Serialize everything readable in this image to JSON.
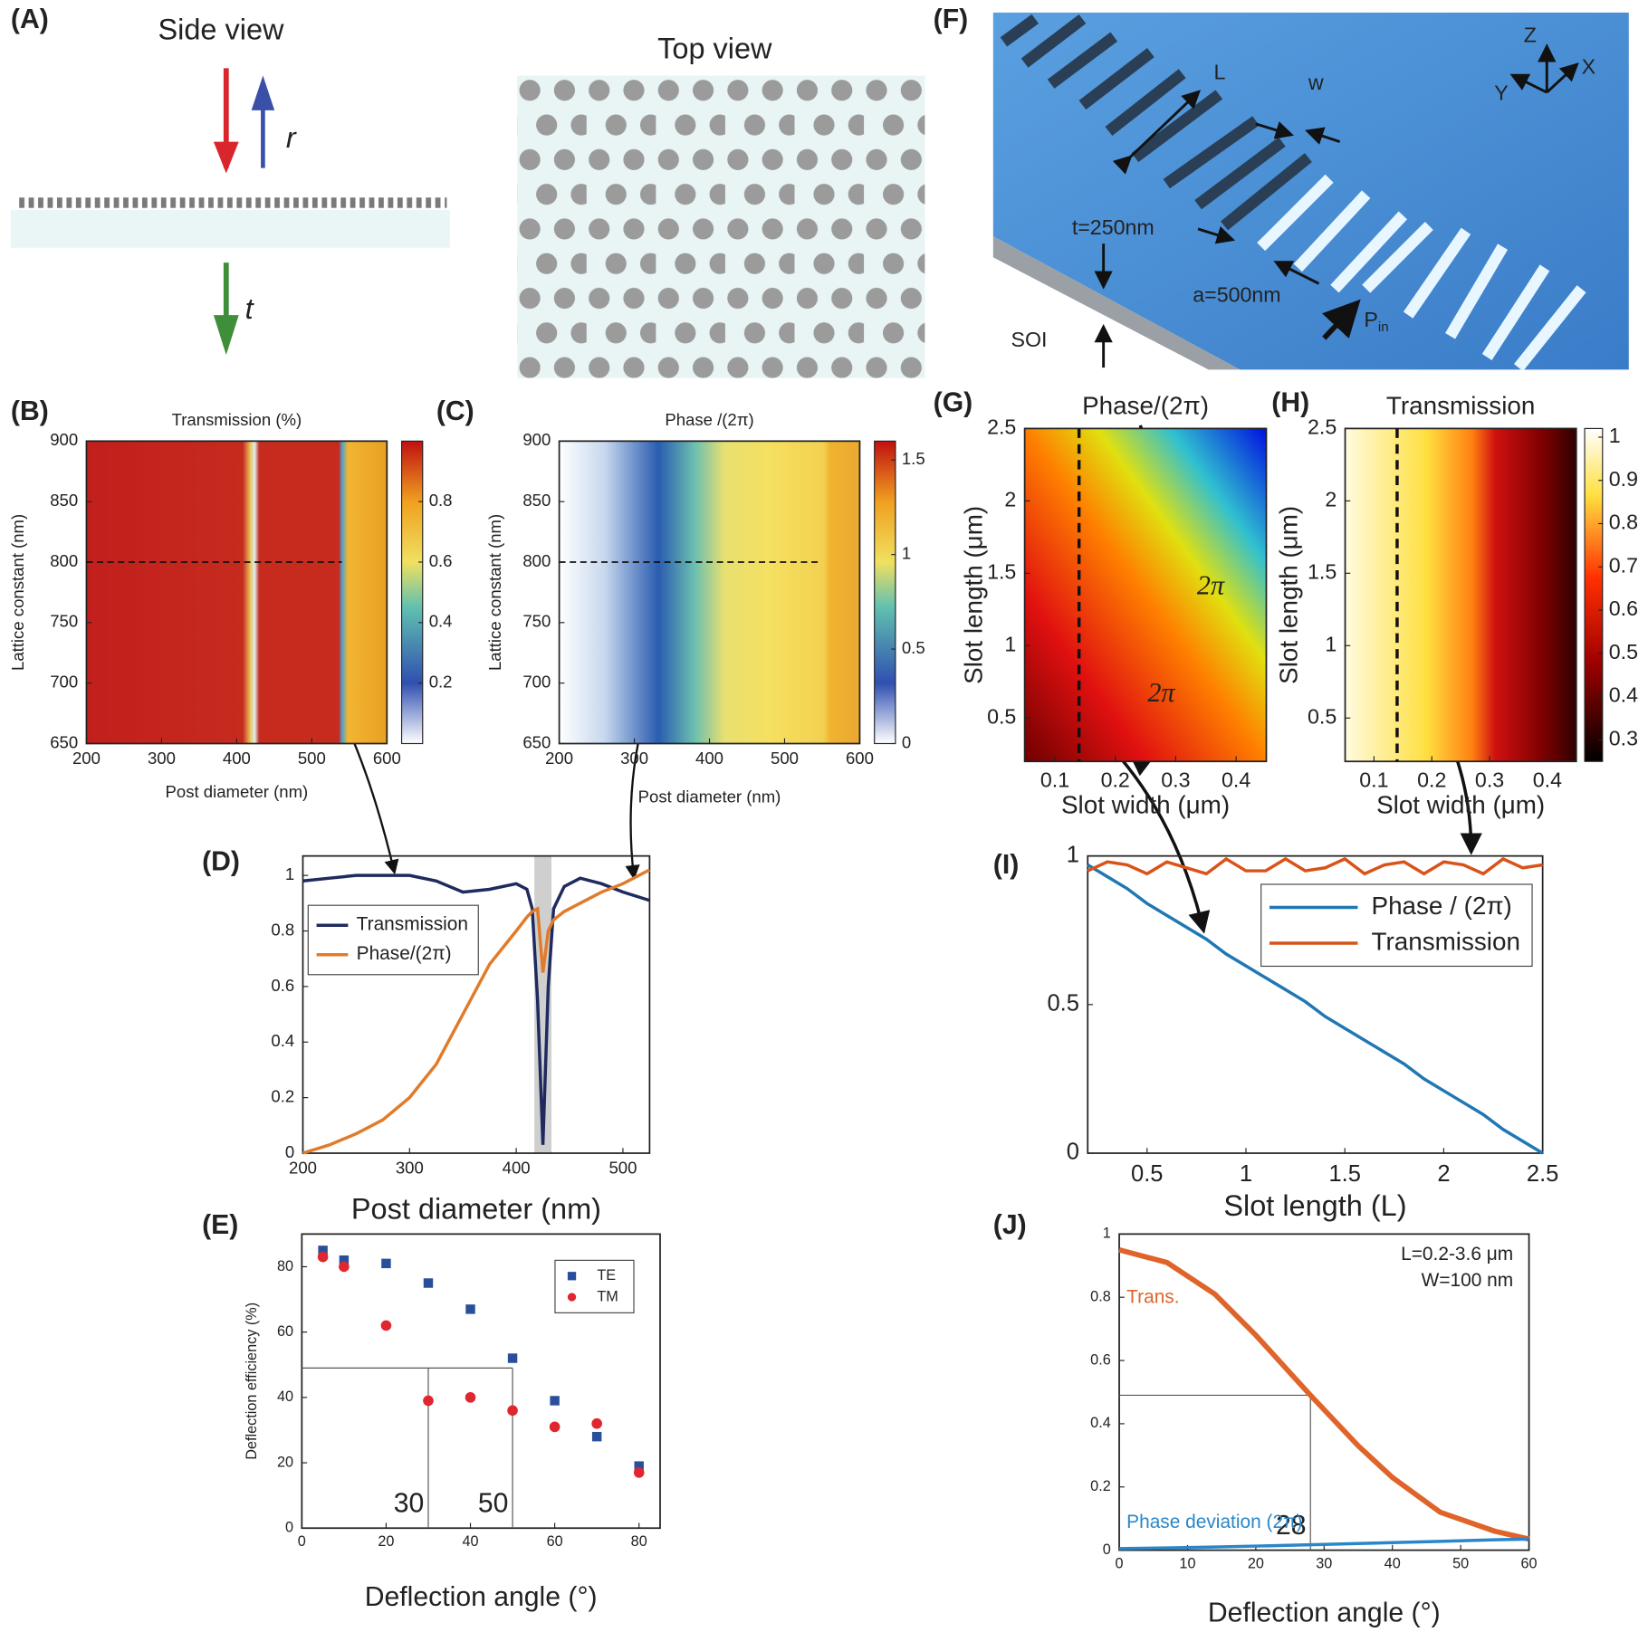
{
  "panel_a": {
    "label": "(A)",
    "side_title": "Side view",
    "reflected": "r",
    "transmitted": "t",
    "top_title": "Top view"
  },
  "panel_f": {
    "label": "(F)",
    "slot_length": "L",
    "slot_width": "w",
    "axis_z": "Z",
    "axis_x": "X",
    "axis_y": "Y",
    "thickness": "t=250nm",
    "period": "a=500nm",
    "substrate": "SOI",
    "input": "P",
    "input_sub": "in"
  },
  "chart_data": [
    {
      "type": "heatmap",
      "label": "(B)",
      "title": "Transmission (%)",
      "xlabel": "Post diameter (nm)",
      "ylabel": "Lattice constant (nm)",
      "xlim": [
        200,
        600
      ],
      "ylim": [
        650,
        900
      ],
      "xticks": [
        200,
        300,
        400,
        500,
        600
      ],
      "yticks": [
        650,
        700,
        750,
        800,
        850,
        900
      ],
      "reference_y": 800,
      "reference_end": 540,
      "colorbar": {
        "lim": [
          0,
          1
        ],
        "ticks": [
          0.2,
          0.4,
          0.6,
          0.8
        ]
      }
    },
    {
      "type": "heatmap",
      "label": "(C)",
      "title": "Phase /(2π)",
      "xlabel": "Post diameter (nm)",
      "ylabel": "Lattice constant (nm)",
      "xlim": [
        200,
        600
      ],
      "ylim": [
        650,
        900
      ],
      "xticks": [
        200,
        300,
        400,
        500,
        600
      ],
      "yticks": [
        650,
        700,
        750,
        800,
        850,
        900
      ],
      "reference_y": 800,
      "reference_end": 545,
      "colorbar": {
        "lim": [
          0,
          1.6
        ],
        "ticks": [
          0,
          0.5,
          1,
          1.5
        ]
      }
    },
    {
      "type": "line",
      "label": "(D)",
      "xlabel": "Post diameter (nm)",
      "xlim": [
        200,
        525
      ],
      "ylim": [
        0,
        1.07
      ],
      "xticks": [
        200,
        300,
        400,
        500
      ],
      "yticks": [
        0,
        0.2,
        0.4,
        0.6,
        0.8,
        1
      ],
      "shaded_region": [
        417,
        433
      ],
      "x": [
        200,
        225,
        250,
        275,
        300,
        325,
        350,
        375,
        400,
        410,
        415,
        420,
        425,
        430,
        435,
        445,
        460,
        480,
        500,
        525
      ],
      "series": [
        {
          "name": "Transmission",
          "color": "#1f2a5e",
          "values": [
            0.98,
            0.99,
            1.0,
            1.0,
            1.0,
            0.98,
            0.94,
            0.95,
            0.97,
            0.95,
            0.88,
            0.55,
            0.03,
            0.6,
            0.88,
            0.96,
            0.99,
            0.97,
            0.94,
            0.91
          ]
        },
        {
          "name": "Phase/(2π)",
          "color": "#e07b2a",
          "values": [
            0,
            0.03,
            0.07,
            0.12,
            0.2,
            0.32,
            0.5,
            0.68,
            0.8,
            0.85,
            0.87,
            0.88,
            0.65,
            0.8,
            0.84,
            0.87,
            0.9,
            0.94,
            0.97,
            1.02
          ]
        }
      ]
    },
    {
      "type": "scatter",
      "label": "(E)",
      "xlabel": "Deflection angle (°)",
      "ylabel": "Deflection efficiency (%)",
      "xlim": [
        0,
        85
      ],
      "ylim": [
        0,
        90
      ],
      "xticks": [
        0,
        20,
        40,
        60,
        80
      ],
      "yticks": [
        0,
        20,
        40,
        60,
        80
      ],
      "x": [
        5,
        10,
        20,
        30,
        40,
        50,
        60,
        70,
        80
      ],
      "series": [
        {
          "name": "TE",
          "color": "#2a4f9a",
          "marker": "square",
          "values": [
            85,
            82,
            81,
            75,
            67,
            52,
            39,
            28,
            19
          ]
        },
        {
          "name": "TM",
          "color": "#e0262e",
          "marker": "circle",
          "values": [
            83,
            80,
            62,
            39,
            40,
            36,
            31,
            32,
            17
          ]
        }
      ],
      "reference_y": 49,
      "markers": [
        30,
        50
      ]
    },
    {
      "type": "heatmap",
      "label": "(G)",
      "title": "Phase/(2π)",
      "xlabel": "Slot width (μm)",
      "ylabel": "Slot length (μm)",
      "xlim": [
        0.05,
        0.45
      ],
      "ylim": [
        0.2,
        2.5
      ],
      "xticks": [
        0.1,
        0.2,
        0.3,
        0.4
      ],
      "yticks": [
        0.5,
        1,
        1.5,
        2,
        2.5
      ],
      "reference_x": 0.14,
      "annotations": [
        "2π",
        "2π"
      ]
    },
    {
      "type": "heatmap",
      "label": "(H)",
      "title": "Transmission",
      "xlabel": "Slot width (μm)",
      "ylabel": "Slot length (μm)",
      "xlim": [
        0.05,
        0.45
      ],
      "ylim": [
        0.2,
        2.5
      ],
      "xticks": [
        0.1,
        0.2,
        0.3,
        0.4
      ],
      "yticks": [
        0.5,
        1,
        1.5,
        2,
        2.5
      ],
      "reference_x": 0.14,
      "colorbar": {
        "lim": [
          0.25,
          1.02
        ],
        "ticks": [
          0.3,
          0.4,
          0.5,
          0.6,
          0.7,
          0.8,
          0.9,
          1
        ]
      }
    },
    {
      "type": "line",
      "label": "(I)",
      "xlabel": "Slot length (L)",
      "xlim": [
        0.2,
        2.5
      ],
      "ylim": [
        0,
        1
      ],
      "xticks": [
        0.5,
        1,
        1.5,
        2,
        2.5
      ],
      "yticks": [
        0,
        0.5,
        1
      ],
      "x": [
        0.2,
        0.3,
        0.4,
        0.5,
        0.6,
        0.7,
        0.8,
        0.9,
        1.0,
        1.1,
        1.2,
        1.3,
        1.4,
        1.5,
        1.6,
        1.7,
        1.8,
        1.9,
        2.0,
        2.1,
        2.2,
        2.3,
        2.4,
        2.5
      ],
      "series": [
        {
          "name": "Phase / (2π)",
          "color": "#1f77b4",
          "values": [
            0.97,
            0.93,
            0.89,
            0.84,
            0.8,
            0.76,
            0.72,
            0.67,
            0.63,
            0.59,
            0.55,
            0.51,
            0.46,
            0.42,
            0.38,
            0.34,
            0.3,
            0.25,
            0.21,
            0.17,
            0.13,
            0.08,
            0.04,
            0
          ]
        },
        {
          "name": "Transmission",
          "color": "#d95319",
          "values": [
            0.95,
            0.98,
            0.97,
            0.94,
            0.98,
            0.96,
            0.94,
            0.99,
            0.95,
            0.95,
            0.99,
            0.95,
            0.96,
            0.99,
            0.94,
            0.97,
            0.98,
            0.94,
            0.98,
            0.97,
            0.94,
            0.99,
            0.96,
            0.97
          ]
        }
      ]
    },
    {
      "type": "line",
      "label": "(J)",
      "xlabel": "Deflection angle (°)",
      "xlim": [
        0,
        60
      ],
      "ylim": [
        0,
        1
      ],
      "xticks": [
        0,
        10,
        20,
        30,
        40,
        50,
        60
      ],
      "yticks": [
        0,
        0.2,
        0.4,
        0.6,
        0.8,
        1
      ],
      "x": [
        0,
        7,
        14,
        20,
        28,
        35,
        40,
        47,
        55,
        60
      ],
      "series": [
        {
          "name": "Trans.",
          "color": "#e0642a",
          "values": [
            0.95,
            0.91,
            0.81,
            0.68,
            0.49,
            0.33,
            0.23,
            0.12,
            0.06,
            0.035
          ]
        },
        {
          "name": "Phase deviation (2π)",
          "color": "#2a86c8",
          "values": [
            0.005,
            0.007,
            0.01,
            0.013,
            0.017,
            0.021,
            0.024,
            0.028,
            0.033,
            0.035
          ]
        }
      ],
      "reference_y": 0.49,
      "markers": [
        28
      ],
      "annotations": [
        "L=0.2-3.6 μm",
        "W=100 nm"
      ]
    }
  ]
}
